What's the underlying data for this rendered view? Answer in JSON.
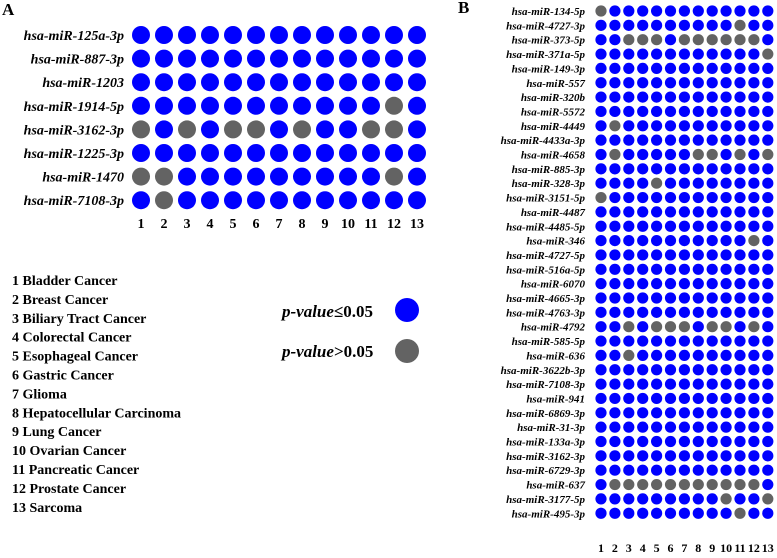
{
  "colors": {
    "significant": "#0000ff",
    "not_significant": "#636363"
  },
  "chart_data": [
    {
      "type": "heatmap",
      "panel": "A",
      "x": [
        "1",
        "2",
        "3",
        "4",
        "5",
        "6",
        "7",
        "8",
        "9",
        "10",
        "11",
        "12",
        "13"
      ],
      "rows": [
        {
          "name": "hsa-miR-125a-3p",
          "values": [
            1,
            1,
            1,
            1,
            1,
            1,
            1,
            1,
            1,
            1,
            1,
            1,
            1
          ]
        },
        {
          "name": "hsa-miR-887-3p",
          "values": [
            1,
            1,
            1,
            1,
            1,
            1,
            1,
            1,
            1,
            1,
            1,
            1,
            1
          ]
        },
        {
          "name": "hsa-miR-1203",
          "values": [
            1,
            1,
            1,
            1,
            1,
            1,
            1,
            1,
            1,
            1,
            1,
            1,
            1
          ]
        },
        {
          "name": "hsa-miR-1914-5p",
          "values": [
            1,
            1,
            1,
            1,
            1,
            1,
            1,
            1,
            1,
            1,
            1,
            0,
            1
          ]
        },
        {
          "name": "hsa-miR-3162-3p",
          "values": [
            0,
            1,
            0,
            1,
            0,
            0,
            1,
            0,
            1,
            1,
            0,
            0,
            1
          ]
        },
        {
          "name": "hsa-miR-1225-3p",
          "values": [
            1,
            1,
            1,
            1,
            1,
            1,
            1,
            1,
            1,
            1,
            1,
            1,
            1
          ]
        },
        {
          "name": "hsa-miR-1470",
          "values": [
            0,
            0,
            1,
            1,
            1,
            1,
            1,
            1,
            1,
            1,
            1,
            0,
            1
          ]
        },
        {
          "name": "hsa-miR-7108-3p",
          "values": [
            1,
            0,
            1,
            1,
            1,
            1,
            1,
            1,
            1,
            1,
            1,
            1,
            1
          ]
        }
      ]
    },
    {
      "type": "heatmap",
      "panel": "B",
      "x": [
        "1",
        "2",
        "3",
        "4",
        "5",
        "6",
        "7",
        "8",
        "9",
        "10",
        "11",
        "12",
        "13"
      ],
      "rows": [
        {
          "name": "hsa-miR-134-5p",
          "values": [
            0,
            1,
            1,
            1,
            1,
            1,
            1,
            1,
            1,
            1,
            1,
            1,
            1
          ]
        },
        {
          "name": "hsa-miR-4727-3p",
          "values": [
            1,
            1,
            1,
            1,
            1,
            1,
            1,
            1,
            1,
            1,
            0,
            1,
            1
          ]
        },
        {
          "name": "hsa-miR-373-5p",
          "values": [
            1,
            1,
            0,
            0,
            0,
            1,
            0,
            0,
            0,
            0,
            0,
            0,
            1
          ]
        },
        {
          "name": "hsa-miR-371a-5p",
          "values": [
            1,
            1,
            1,
            1,
            1,
            1,
            1,
            1,
            1,
            1,
            1,
            1,
            0
          ]
        },
        {
          "name": "hsa-miR-149-3p",
          "values": [
            1,
            1,
            1,
            1,
            1,
            1,
            1,
            1,
            1,
            1,
            1,
            1,
            1
          ]
        },
        {
          "name": "hsa-miR-557",
          "values": [
            1,
            1,
            1,
            1,
            1,
            1,
            1,
            1,
            1,
            1,
            1,
            1,
            1
          ]
        },
        {
          "name": "hsa-miR-320b",
          "values": [
            1,
            1,
            1,
            1,
            1,
            1,
            1,
            1,
            1,
            1,
            1,
            1,
            1
          ]
        },
        {
          "name": "hsa-miR-5572",
          "values": [
            1,
            1,
            1,
            1,
            1,
            1,
            1,
            1,
            1,
            1,
            1,
            1,
            1
          ]
        },
        {
          "name": "hsa-miR-4449",
          "values": [
            1,
            0,
            1,
            1,
            1,
            1,
            1,
            1,
            1,
            1,
            1,
            1,
            1
          ]
        },
        {
          "name": "hsa-miR-4433a-3p",
          "values": [
            1,
            1,
            1,
            1,
            1,
            1,
            1,
            1,
            1,
            1,
            1,
            1,
            1
          ]
        },
        {
          "name": "hsa-miR-4658",
          "values": [
            1,
            0,
            1,
            1,
            1,
            1,
            1,
            0,
            0,
            1,
            0,
            1,
            0
          ]
        },
        {
          "name": "hsa-miR-885-3p",
          "values": [
            1,
            1,
            1,
            1,
            1,
            1,
            1,
            1,
            1,
            1,
            1,
            1,
            1
          ]
        },
        {
          "name": "hsa-miR-328-3p",
          "values": [
            1,
            1,
            1,
            1,
            0,
            1,
            1,
            1,
            1,
            1,
            1,
            1,
            1
          ]
        },
        {
          "name": "hsa-miR-3151-5p",
          "values": [
            0,
            1,
            1,
            1,
            1,
            1,
            1,
            1,
            1,
            1,
            1,
            1,
            1
          ]
        },
        {
          "name": "hsa-miR-4487",
          "values": [
            1,
            1,
            1,
            1,
            1,
            1,
            1,
            1,
            1,
            1,
            1,
            1,
            1
          ]
        },
        {
          "name": "hsa-miR-4485-5p",
          "values": [
            1,
            1,
            1,
            1,
            1,
            1,
            1,
            1,
            1,
            1,
            1,
            1,
            1
          ]
        },
        {
          "name": "hsa-miR-346",
          "values": [
            1,
            1,
            1,
            1,
            1,
            1,
            1,
            1,
            1,
            1,
            1,
            0,
            1
          ]
        },
        {
          "name": "hsa-miR-4727-5p",
          "values": [
            1,
            1,
            1,
            1,
            1,
            1,
            1,
            1,
            1,
            1,
            1,
            1,
            1
          ]
        },
        {
          "name": "hsa-miR-516a-5p",
          "values": [
            1,
            1,
            1,
            1,
            1,
            1,
            1,
            1,
            1,
            1,
            1,
            1,
            1
          ]
        },
        {
          "name": "hsa-miR-6070",
          "values": [
            1,
            1,
            1,
            1,
            1,
            1,
            1,
            1,
            1,
            1,
            1,
            1,
            1
          ]
        },
        {
          "name": "hsa-miR-4665-3p",
          "values": [
            1,
            1,
            1,
            1,
            1,
            1,
            1,
            1,
            1,
            1,
            1,
            1,
            1
          ]
        },
        {
          "name": "hsa-miR-4763-3p",
          "values": [
            1,
            1,
            1,
            1,
            1,
            1,
            1,
            1,
            1,
            1,
            1,
            1,
            1
          ]
        },
        {
          "name": "hsa-miR-4792",
          "values": [
            1,
            1,
            0,
            1,
            0,
            0,
            0,
            1,
            0,
            0,
            1,
            0,
            1
          ]
        },
        {
          "name": "hsa-miR-585-5p",
          "values": [
            1,
            1,
            1,
            1,
            1,
            1,
            1,
            1,
            1,
            1,
            1,
            1,
            1
          ]
        },
        {
          "name": "hsa-miR-636",
          "values": [
            1,
            1,
            0,
            1,
            1,
            1,
            1,
            1,
            1,
            1,
            1,
            1,
            1
          ]
        },
        {
          "name": "hsa-miR-3622b-3p",
          "values": [
            1,
            1,
            1,
            1,
            1,
            1,
            1,
            1,
            1,
            1,
            1,
            1,
            1
          ]
        },
        {
          "name": "hsa-miR-7108-3p",
          "values": [
            1,
            1,
            1,
            1,
            1,
            1,
            1,
            1,
            1,
            1,
            1,
            1,
            1
          ]
        },
        {
          "name": "hsa-miR-941",
          "values": [
            1,
            1,
            1,
            1,
            1,
            1,
            1,
            1,
            1,
            1,
            1,
            1,
            1
          ]
        },
        {
          "name": "hsa-miR-6869-3p",
          "values": [
            1,
            1,
            1,
            1,
            1,
            1,
            1,
            1,
            1,
            1,
            1,
            1,
            1
          ]
        },
        {
          "name": "hsa-miR-31-3p",
          "values": [
            1,
            1,
            1,
            1,
            1,
            1,
            1,
            1,
            1,
            1,
            1,
            1,
            1
          ]
        },
        {
          "name": "hsa-miR-133a-3p",
          "values": [
            1,
            1,
            1,
            1,
            1,
            1,
            1,
            1,
            1,
            1,
            1,
            1,
            1
          ]
        },
        {
          "name": "hsa-miR-3162-3p",
          "values": [
            1,
            1,
            1,
            1,
            1,
            1,
            1,
            1,
            1,
            1,
            1,
            1,
            1
          ]
        },
        {
          "name": "hsa-miR-6729-3p",
          "values": [
            1,
            1,
            1,
            1,
            1,
            1,
            1,
            1,
            1,
            1,
            1,
            1,
            1
          ]
        },
        {
          "name": "hsa-miR-637",
          "values": [
            1,
            0,
            0,
            0,
            0,
            0,
            0,
            0,
            0,
            0,
            0,
            0,
            1
          ]
        },
        {
          "name": "hsa-miR-3177-5p",
          "values": [
            1,
            1,
            1,
            1,
            1,
            1,
            1,
            1,
            1,
            0,
            1,
            1,
            0
          ]
        },
        {
          "name": "hsa-miR-495-3p",
          "values": [
            1,
            1,
            1,
            1,
            1,
            1,
            1,
            1,
            1,
            1,
            0,
            1,
            1
          ]
        }
      ]
    }
  ],
  "panel_a_label": "A",
  "panel_b_label": "B",
  "cancer_list": [
    "1  Bladder Cancer",
    "2  Breast Cancer",
    "3  Biliary Tract Cancer",
    "4  Colorectal Cancer",
    "5  Esophageal Cancer",
    "6  Gastric Cancer",
    "7  Glioma",
    "8  Hepatocellular Carcinoma",
    "9  Lung Cancer",
    "10  Ovarian Cancer",
    "11  Pancreatic Cancer",
    "12  Prostate Cancer",
    "13  Sarcoma"
  ],
  "legend": {
    "sig_italic": "p-value",
    "sig_rest": "≤0.05",
    "nonsig_italic": "p-value",
    "nonsig_rest": ">0.05"
  }
}
